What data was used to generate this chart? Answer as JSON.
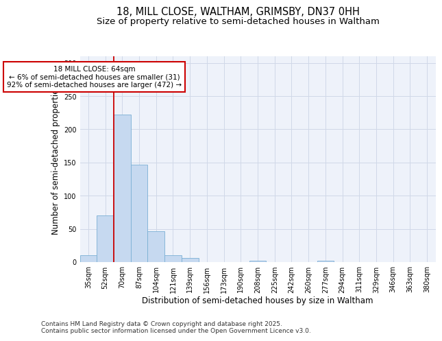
{
  "title_line1": "18, MILL CLOSE, WALTHAM, GRIMSBY, DN37 0HH",
  "title_line2": "Size of property relative to semi-detached houses in Waltham",
  "xlabel": "Distribution of semi-detached houses by size in Waltham",
  "ylabel": "Number of semi-detached properties",
  "categories": [
    "35sqm",
    "52sqm",
    "70sqm",
    "87sqm",
    "104sqm",
    "121sqm",
    "139sqm",
    "156sqm",
    "173sqm",
    "190sqm",
    "208sqm",
    "225sqm",
    "242sqm",
    "260sqm",
    "277sqm",
    "294sqm",
    "311sqm",
    "329sqm",
    "346sqm",
    "363sqm",
    "380sqm"
  ],
  "values": [
    10,
    70,
    222,
    147,
    47,
    10,
    6,
    0,
    0,
    0,
    2,
    0,
    0,
    0,
    2,
    0,
    0,
    0,
    0,
    0,
    0
  ],
  "bar_color": "#c6d9f0",
  "bar_edge_color": "#7aafd4",
  "grid_color": "#d0d8e8",
  "background_color": "#ffffff",
  "plot_bg_color": "#eef2fa",
  "annotation_box_text": "18 MILL CLOSE: 64sqm\n← 6% of semi-detached houses are smaller (31)\n92% of semi-detached houses are larger (472) →",
  "annotation_box_color": "#ffffff",
  "annotation_box_edge_color": "#cc0000",
  "vline_x_index": 1.5,
  "vline_color": "#cc0000",
  "ylim": [
    0,
    310
  ],
  "yticks": [
    0,
    50,
    100,
    150,
    200,
    250,
    300
  ],
  "footer_text": "Contains HM Land Registry data © Crown copyright and database right 2025.\nContains public sector information licensed under the Open Government Licence v3.0.",
  "title_fontsize": 10.5,
  "subtitle_fontsize": 9.5,
  "axis_label_fontsize": 8.5,
  "tick_fontsize": 7,
  "annotation_fontsize": 7.5,
  "footer_fontsize": 6.5
}
